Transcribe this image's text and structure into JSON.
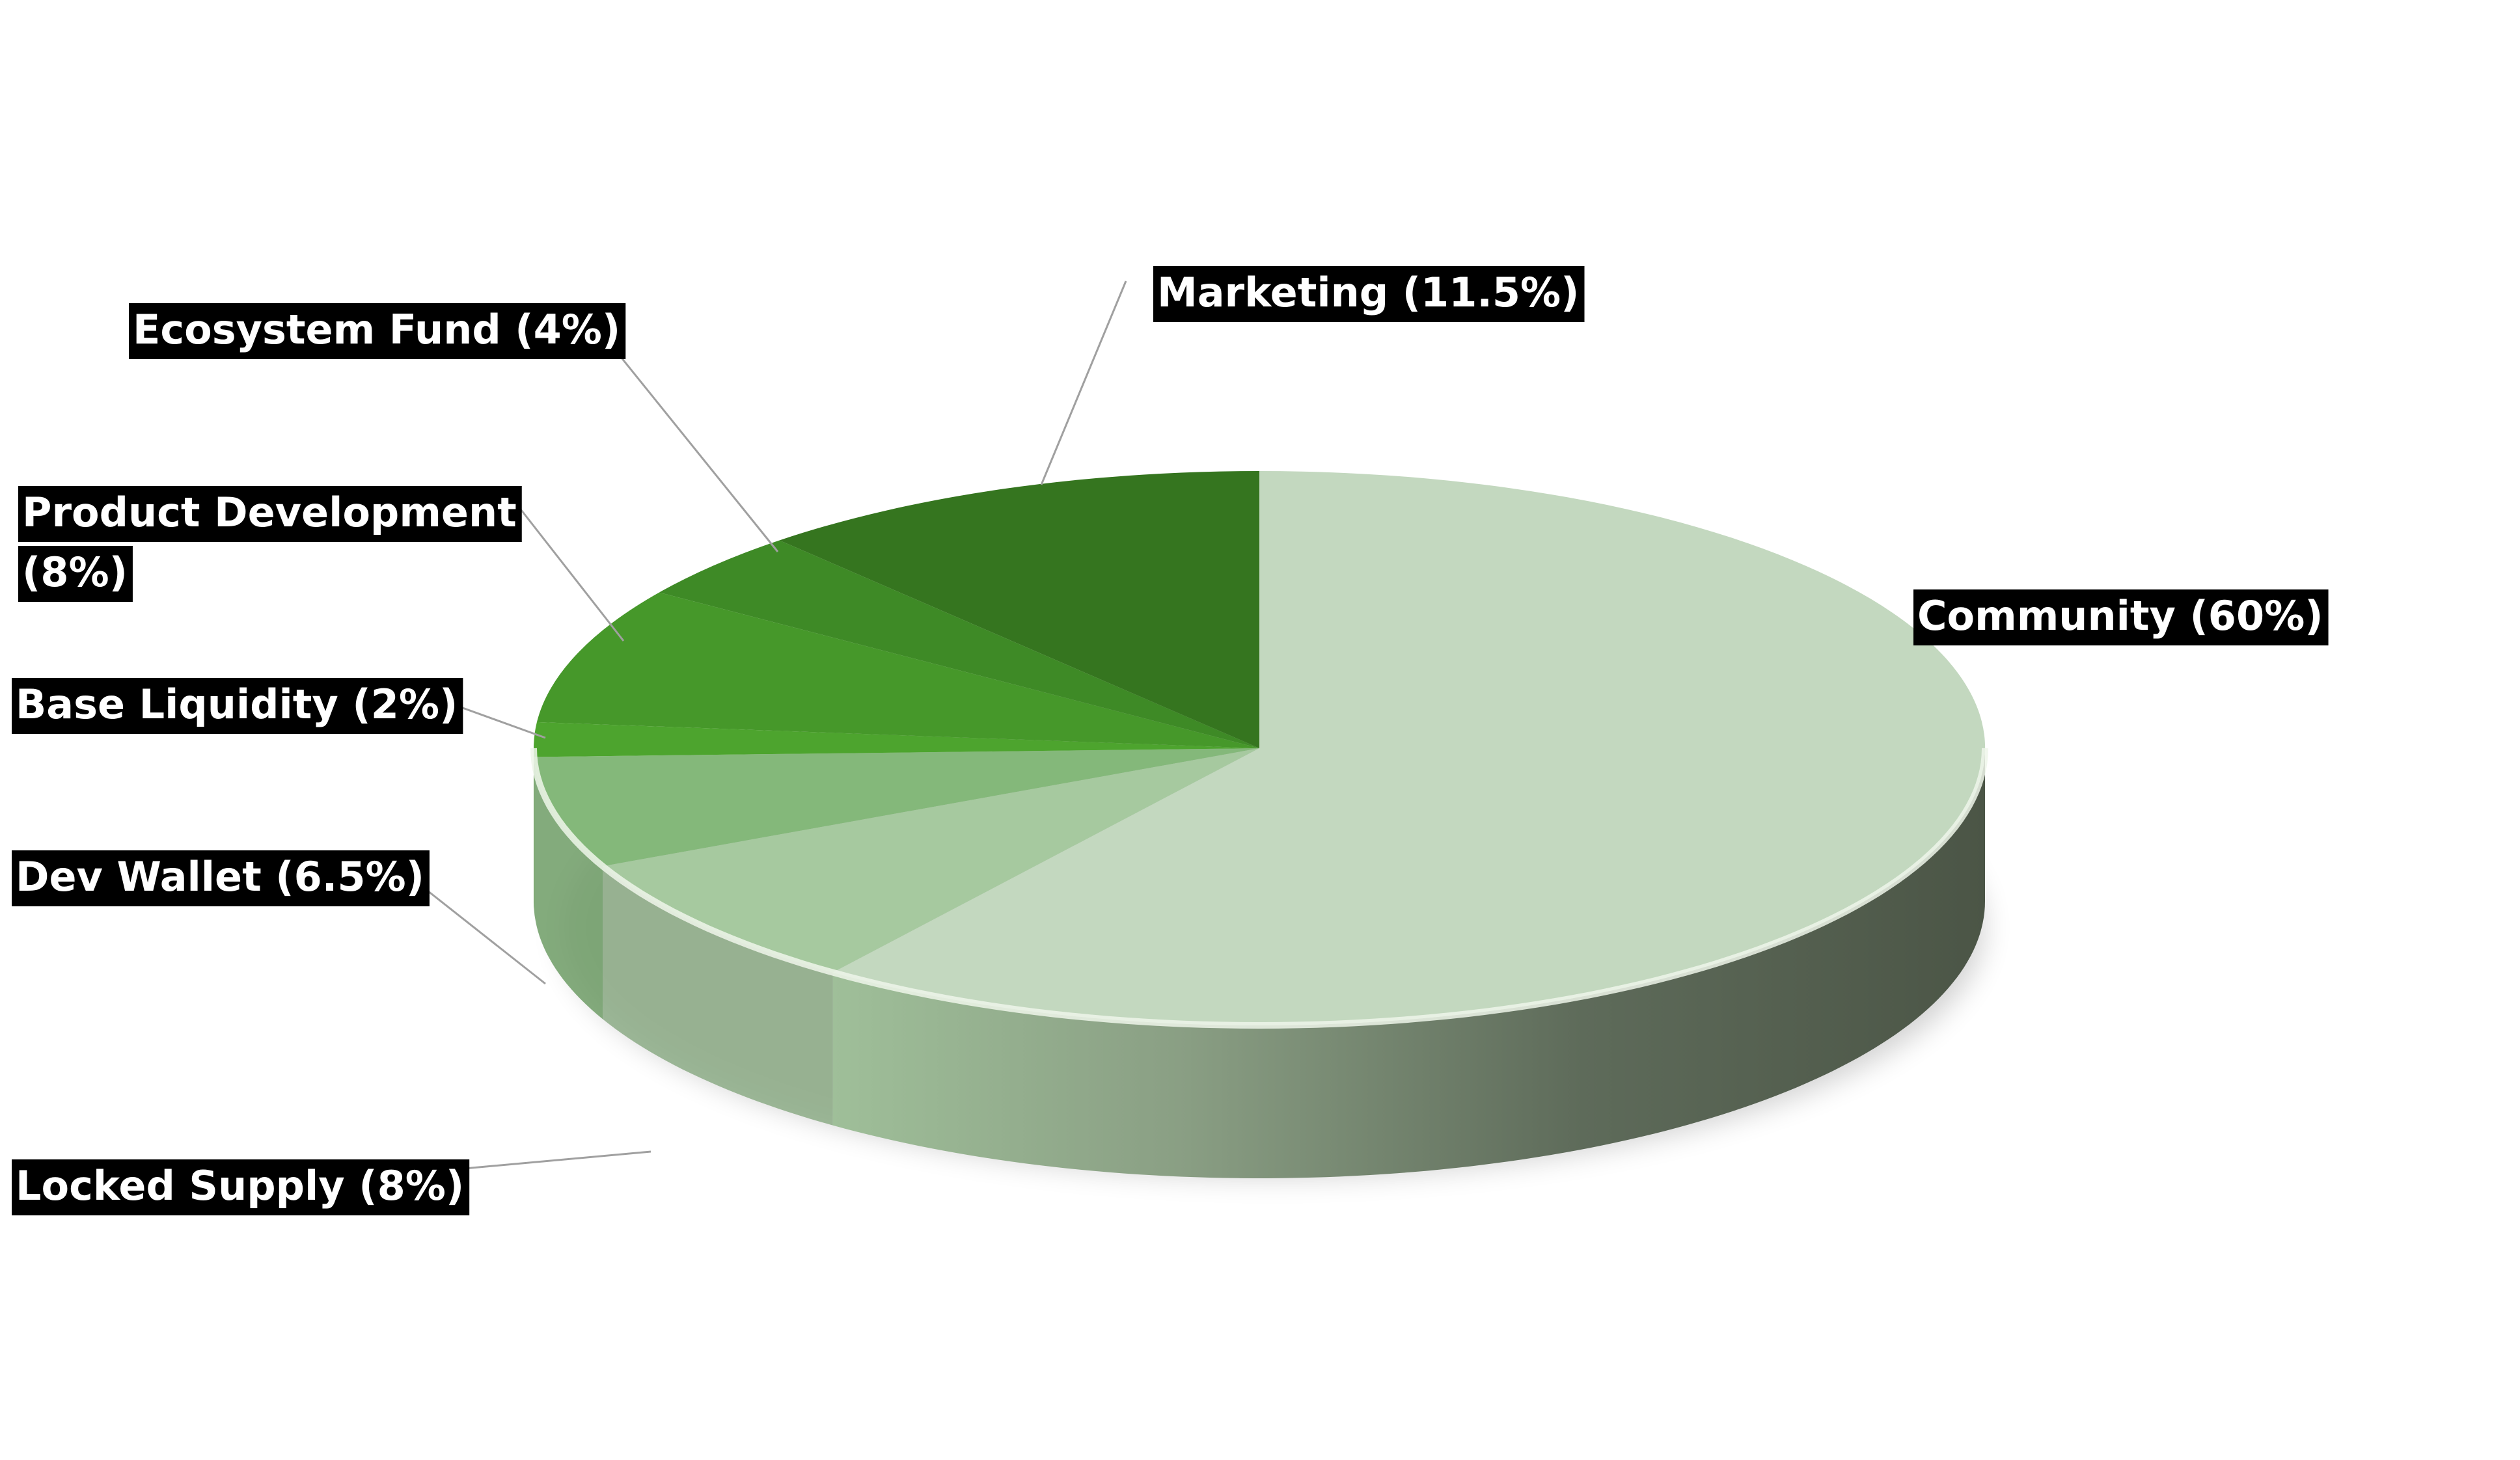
{
  "chart_data": {
    "type": "pie",
    "style": "3d",
    "legend": "none",
    "slices": [
      {
        "label": "Community (60%)",
        "value": 60,
        "color": "#c3d8bf"
      },
      {
        "label": "Locked Supply (8%)",
        "value": 8,
        "color": "#a6c99f"
      },
      {
        "label": "Dev Wallet (6.5%)",
        "value": 6.5,
        "color": "#84b87a"
      },
      {
        "label": "Base Liquidity (2%)",
        "value": 2,
        "color": "#4da42e"
      },
      {
        "label": "Product Development (8%)",
        "value": 8,
        "color": "#46982a"
      },
      {
        "label": "Ecosystem Fund (4%)",
        "value": 4,
        "color": "#3e8a26"
      },
      {
        "label": "Marketing (11.5%)",
        "value": 11.5,
        "color": "#35751f"
      }
    ]
  }
}
